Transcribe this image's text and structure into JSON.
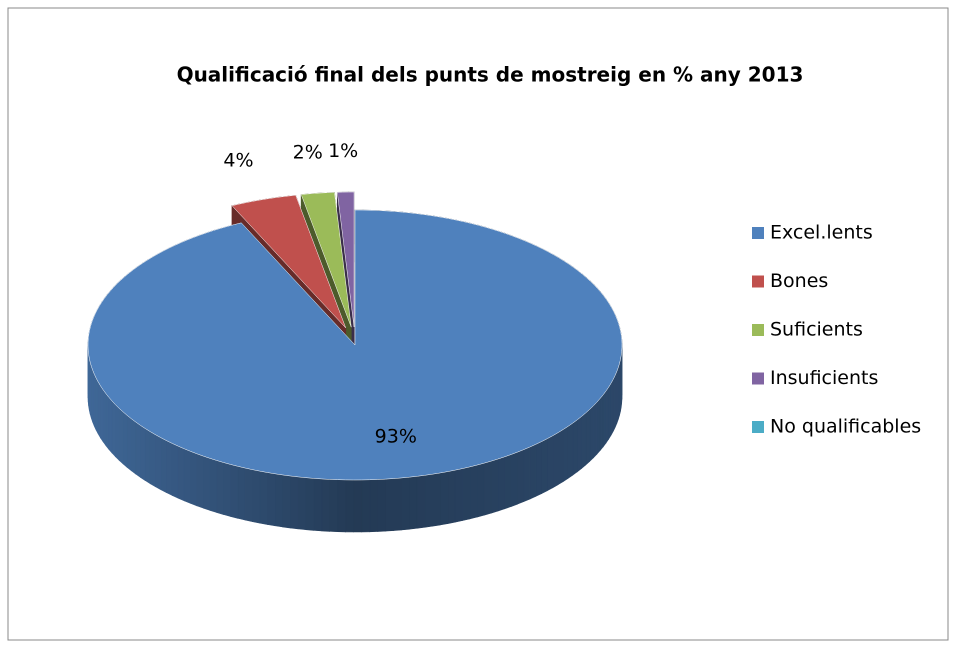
{
  "chart_data": {
    "type": "pie",
    "title": "Qualificació final dels punts de mostreig en % any 2013",
    "categories": [
      "Excel.lents",
      "Bones",
      "Suficients",
      "Insuficients",
      "No qualificables"
    ],
    "values": [
      93,
      4,
      2,
      1,
      0
    ],
    "value_labels": [
      "93%",
      "4%",
      "2%",
      "1%",
      null
    ],
    "colors": [
      "#4f81bd",
      "#c0504d",
      "#9bbb59",
      "#8064a2",
      "#4bacc6"
    ],
    "legend": "right"
  }
}
